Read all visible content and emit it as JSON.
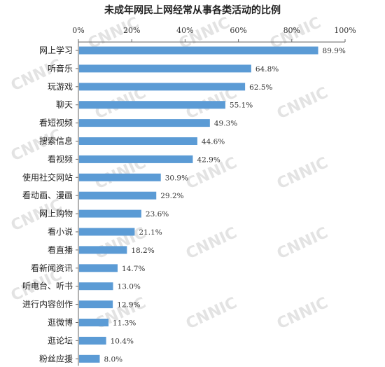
{
  "chart_data": {
    "type": "bar",
    "orientation": "horizontal",
    "title": "未成年网民上网经常从事各类活动的比例",
    "xlabel": "",
    "ylabel": "",
    "xlim": [
      0,
      100
    ],
    "x_ticks": [
      "0%",
      "20%",
      "40%",
      "60%",
      "80%",
      "100%"
    ],
    "grid": false,
    "bar_color": "#5b9bd5",
    "watermark": "CNNIC",
    "categories": [
      "网上学习",
      "听音乐",
      "玩游戏",
      "聊天",
      "看短视频",
      "搜索信息",
      "看视频",
      "使用社交网站",
      "看动画、漫画",
      "网上购物",
      "看小说",
      "看直播",
      "看新闻资讯",
      "听电台、听书",
      "进行内容创作",
      "逛微博",
      "逛论坛",
      "粉丝应援"
    ],
    "values": [
      89.9,
      64.8,
      62.5,
      55.1,
      49.3,
      44.6,
      42.9,
      30.9,
      29.2,
      23.6,
      21.1,
      18.2,
      14.7,
      13.0,
      12.9,
      11.3,
      10.4,
      8.0
    ],
    "value_labels": [
      "89.9%",
      "64.8%",
      "62.5%",
      "55.1%",
      "49.3%",
      "44.6%",
      "42.9%",
      "30.9%",
      "29.2%",
      "23.6%",
      "21.1%",
      "18.2%",
      "14.7%",
      "13.0%",
      "12.9%",
      "11.3%",
      "10.4%",
      "8.0%"
    ]
  }
}
